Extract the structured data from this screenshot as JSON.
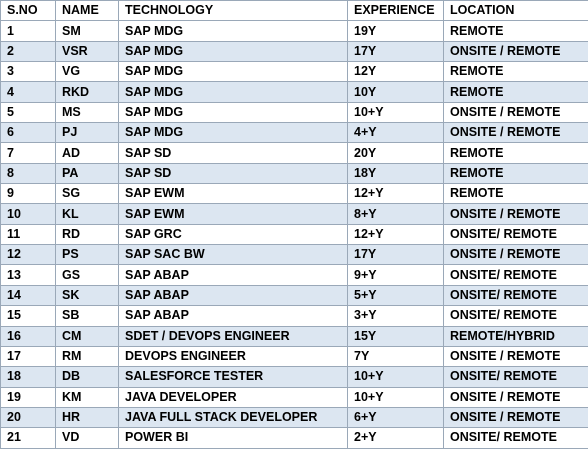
{
  "table": {
    "headers": [
      "S.NO",
      "NAME",
      "TECHNOLOGY",
      "EXPERIENCE",
      "LOCATION"
    ],
    "rows": [
      [
        "1",
        "SM",
        "SAP MDG",
        "19Y",
        "REMOTE"
      ],
      [
        "2",
        "VSR",
        "SAP MDG",
        "17Y",
        "ONSITE / REMOTE"
      ],
      [
        "3",
        "VG",
        "SAP MDG",
        "12Y",
        "REMOTE"
      ],
      [
        "4",
        "RKD",
        "SAP MDG",
        "10Y",
        "REMOTE"
      ],
      [
        "5",
        "MS",
        "SAP MDG",
        "10+Y",
        "ONSITE / REMOTE"
      ],
      [
        "6",
        "PJ",
        "SAP MDG",
        "4+Y",
        "ONSITE / REMOTE"
      ],
      [
        "7",
        "AD",
        "SAP SD",
        "20Y",
        "REMOTE"
      ],
      [
        "8",
        "PA",
        "SAP SD",
        "18Y",
        "REMOTE"
      ],
      [
        "9",
        "SG",
        "SAP EWM",
        "12+Y",
        "REMOTE"
      ],
      [
        "10",
        "KL",
        "SAP EWM",
        "8+Y",
        "ONSITE / REMOTE"
      ],
      [
        "11",
        "RD",
        "SAP GRC",
        "12+Y",
        "ONSITE/ REMOTE"
      ],
      [
        "12",
        "PS",
        "SAP SAC BW",
        "17Y",
        "ONSITE / REMOTE"
      ],
      [
        "13",
        "GS",
        "SAP ABAP",
        "9+Y",
        "ONSITE/ REMOTE"
      ],
      [
        "14",
        "SK",
        "SAP ABAP",
        "5+Y",
        "ONSITE/ REMOTE"
      ],
      [
        "15",
        "SB",
        "SAP ABAP",
        "3+Y",
        "ONSITE/ REMOTE"
      ],
      [
        "16",
        "CM",
        "SDET / DEVOPS ENGINEER",
        "15Y",
        "REMOTE/HYBRID"
      ],
      [
        "17",
        "RM",
        "DEVOPS ENGINEER",
        "7Y",
        "ONSITE / REMOTE"
      ],
      [
        "18",
        "DB",
        "SALESFORCE  TESTER",
        "10+Y",
        "ONSITE/ REMOTE"
      ],
      [
        "19",
        "KM",
        "JAVA DEVELOPER",
        "10+Y",
        "ONSITE / REMOTE"
      ],
      [
        "20",
        "HR",
        "JAVA FULL STACK DEVELOPER",
        "6+Y",
        "ONSITE / REMOTE"
      ],
      [
        "21",
        "VD",
        "POWER BI",
        "2+Y",
        "ONSITE/ REMOTE"
      ]
    ]
  },
  "colors": {
    "band_row": "#dce6f1",
    "plain_row": "#ffffff",
    "border": "#9aa8b8",
    "text": "#000000"
  }
}
